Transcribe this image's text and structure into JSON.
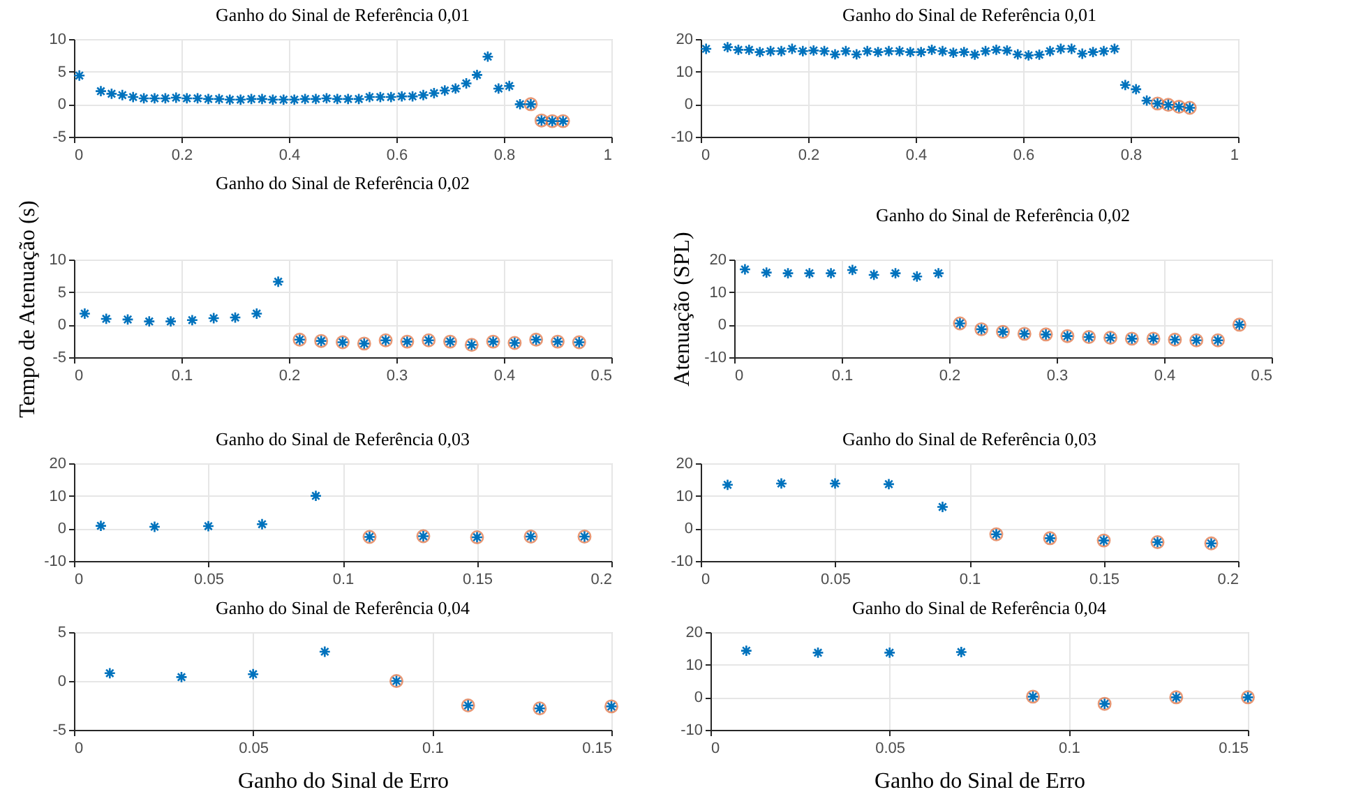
{
  "chart_data": [
    {
      "type": "scatter",
      "title": "Ganho do Sinal de Referência 0,01",
      "xlim": [
        0,
        1
      ],
      "xticks": [
        0,
        0.2,
        0.4,
        0.6,
        0.8,
        1
      ],
      "ylim": [
        -5,
        10
      ],
      "yticks": [
        -5,
        0,
        5,
        10
      ],
      "grid": true,
      "series": [
        {
          "color": "#0072bd",
          "marker": "cross",
          "x": [
            0.01,
            0.05,
            0.07,
            0.09,
            0.11,
            0.13,
            0.15,
            0.17,
            0.19,
            0.21,
            0.23,
            0.25,
            0.27,
            0.29,
            0.31,
            0.33,
            0.35,
            0.37,
            0.39,
            0.41,
            0.43,
            0.45,
            0.47,
            0.49,
            0.51,
            0.53,
            0.55,
            0.57,
            0.59,
            0.61,
            0.63,
            0.65,
            0.67,
            0.69,
            0.71,
            0.73,
            0.75,
            0.77,
            0.79,
            0.81,
            0.83,
            0.85,
            0.87,
            0.89,
            0.91
          ],
          "values": [
            4.4,
            2.0,
            1.6,
            1.4,
            1.1,
            0.9,
            0.9,
            0.9,
            1.0,
            0.9,
            0.9,
            0.8,
            0.8,
            0.7,
            0.7,
            0.8,
            0.8,
            0.7,
            0.7,
            0.7,
            0.8,
            0.8,
            0.9,
            0.8,
            0.8,
            0.8,
            1.1,
            1.1,
            1.1,
            1.2,
            1.2,
            1.4,
            1.7,
            2.1,
            2.4,
            3.2,
            4.5,
            7.3,
            2.4,
            2.8,
            0,
            0,
            -2.5,
            -2.6,
            -2.6
          ]
        },
        {
          "color": "#d95319",
          "marker": "circle",
          "x": [
            0.85,
            0.87,
            0.89,
            0.91
          ],
          "values": [
            0,
            -2.5,
            -2.6,
            -2.6
          ]
        }
      ]
    },
    {
      "type": "scatter",
      "title": "Ganho do Sinal de Referência 0,01",
      "xlim": [
        0,
        1
      ],
      "xticks": [
        0,
        0.2,
        0.4,
        0.6,
        0.8,
        1
      ],
      "ylim": [
        -10,
        20
      ],
      "yticks": [
        -10,
        0,
        10,
        20
      ],
      "grid": true,
      "series": [
        {
          "color": "#0072bd",
          "marker": "cross",
          "x": [
            0.01,
            0.05,
            0.07,
            0.09,
            0.11,
            0.13,
            0.15,
            0.17,
            0.19,
            0.21,
            0.23,
            0.25,
            0.27,
            0.29,
            0.31,
            0.33,
            0.35,
            0.37,
            0.39,
            0.41,
            0.43,
            0.45,
            0.47,
            0.49,
            0.51,
            0.53,
            0.55,
            0.57,
            0.59,
            0.61,
            0.63,
            0.65,
            0.67,
            0.69,
            0.71,
            0.73,
            0.75,
            0.77,
            0.79,
            0.81,
            0.83,
            0.85,
            0.87,
            0.89,
            0.91
          ],
          "values": [
            17,
            17.5,
            16.7,
            16.7,
            16,
            16.3,
            16.3,
            17,
            16.3,
            16.5,
            16.3,
            15.3,
            16.3,
            15.3,
            16.3,
            16,
            16.3,
            16.3,
            16,
            16,
            16.7,
            16.3,
            15.8,
            16,
            15.2,
            16.3,
            16.7,
            16.5,
            15.3,
            15,
            15.2,
            16.3,
            17,
            17,
            15.5,
            16,
            16.3,
            17,
            5.9,
            4.6,
            1.1,
            0.2,
            -0.2,
            -0.8,
            -1.1
          ]
        },
        {
          "color": "#d95319",
          "marker": "circle",
          "x": [
            0.85,
            0.87,
            0.89,
            0.91
          ],
          "values": [
            0.2,
            -0.2,
            -0.8,
            -1.1
          ]
        }
      ]
    },
    {
      "type": "scatter",
      "title": "Ganho do Sinal de Referência 0,02",
      "ylabel": "Tempo de Atenuação (s)",
      "xlim": [
        0,
        0.5
      ],
      "xticks": [
        0,
        0.1,
        0.2,
        0.3,
        0.4,
        0.5
      ],
      "ylim": [
        -5,
        10
      ],
      "yticks": [
        -5,
        0,
        5,
        10
      ],
      "grid": true,
      "series": [
        {
          "color": "#0072bd",
          "marker": "cross",
          "x": [
            0.01,
            0.03,
            0.05,
            0.07,
            0.09,
            0.11,
            0.13,
            0.15,
            0.17,
            0.19,
            0.21,
            0.23,
            0.25,
            0.27,
            0.29,
            0.31,
            0.33,
            0.35,
            0.37,
            0.39,
            0.41,
            0.43,
            0.45,
            0.47
          ],
          "values": [
            1.7,
            0.9,
            0.8,
            0.5,
            0.5,
            0.7,
            1.0,
            1.1,
            1.7,
            6.6,
            -2.3,
            -2.5,
            -2.7,
            -2.9,
            -2.4,
            -2.6,
            -2.4,
            -2.6,
            -3.1,
            -2.6,
            -2.8,
            -2.3,
            -2.6,
            -2.7
          ]
        },
        {
          "color": "#d95319",
          "marker": "circle",
          "x": [
            0.21,
            0.23,
            0.25,
            0.27,
            0.29,
            0.31,
            0.33,
            0.35,
            0.37,
            0.39,
            0.41,
            0.43,
            0.45,
            0.47
          ],
          "values": [
            -2.3,
            -2.5,
            -2.7,
            -2.9,
            -2.4,
            -2.6,
            -2.4,
            -2.6,
            -3.1,
            -2.6,
            -2.8,
            -2.3,
            -2.6,
            -2.7
          ]
        }
      ]
    },
    {
      "type": "scatter",
      "title": "Ganho do Sinal de Referência 0,02",
      "ylabel": "Atenuação (SPL)",
      "xlim": [
        0,
        0.5
      ],
      "xticks": [
        0,
        0.1,
        0.2,
        0.3,
        0.4,
        0.5
      ],
      "ylim": [
        -10,
        20
      ],
      "yticks": [
        -10,
        0,
        10,
        20
      ],
      "grid": true,
      "series": [
        {
          "color": "#0072bd",
          "marker": "cross",
          "x": [
            0.01,
            0.03,
            0.05,
            0.07,
            0.09,
            0.11,
            0.13,
            0.15,
            0.17,
            0.19,
            0.21,
            0.23,
            0.25,
            0.27,
            0.29,
            0.31,
            0.33,
            0.35,
            0.37,
            0.39,
            0.41,
            0.43,
            0.45,
            0.47
          ],
          "values": [
            17,
            16,
            15.8,
            15.8,
            15.8,
            16.8,
            15.3,
            15.8,
            14.8,
            15.8,
            0.4,
            -1.4,
            -2.2,
            -2.8,
            -3.0,
            -3.5,
            -3.8,
            -4,
            -4.3,
            -4.3,
            -4.6,
            -4.8,
            -4.8,
            0
          ]
        },
        {
          "color": "#d95319",
          "marker": "circle",
          "x": [
            0.21,
            0.23,
            0.25,
            0.27,
            0.29,
            0.31,
            0.33,
            0.35,
            0.37,
            0.39,
            0.41,
            0.43,
            0.45,
            0.47
          ],
          "values": [
            0.4,
            -1.4,
            -2.2,
            -2.8,
            -3.0,
            -3.5,
            -3.8,
            -4,
            -4.3,
            -4.3,
            -4.6,
            -4.8,
            -4.8,
            0
          ]
        }
      ]
    },
    {
      "type": "scatter",
      "title": "Ganho do Sinal de Referência 0,03",
      "xlim": [
        0,
        0.2
      ],
      "xticks": [
        0,
        0.05,
        0.1,
        0.15,
        0.2
      ],
      "ylim": [
        -10,
        20
      ],
      "yticks": [
        -10,
        0,
        10,
        20
      ],
      "grid": true,
      "series": [
        {
          "color": "#0072bd",
          "marker": "cross",
          "x": [
            0.01,
            0.03,
            0.05,
            0.07,
            0.09,
            0.11,
            0.13,
            0.15,
            0.17,
            0.19
          ],
          "values": [
            0.8,
            0.5,
            0.7,
            1.3,
            10.0,
            -2.6,
            -2.4,
            -2.7,
            -2.5,
            -2.5
          ]
        },
        {
          "color": "#d95319",
          "marker": "circle",
          "x": [
            0.11,
            0.13,
            0.15,
            0.17,
            0.19
          ],
          "values": [
            -2.6,
            -2.4,
            -2.7,
            -2.5,
            -2.5
          ]
        }
      ]
    },
    {
      "type": "scatter",
      "title": "Ganho do Sinal de Referência 0,03",
      "xlim": [
        0,
        0.2
      ],
      "xticks": [
        0,
        0.05,
        0.1,
        0.15,
        0.2
      ],
      "ylim": [
        -10,
        20
      ],
      "yticks": [
        -10,
        0,
        10,
        20
      ],
      "grid": true,
      "series": [
        {
          "color": "#0072bd",
          "marker": "cross",
          "x": [
            0.01,
            0.03,
            0.05,
            0.07,
            0.09,
            0.11,
            0.13,
            0.15,
            0.17,
            0.19
          ],
          "values": [
            13.4,
            13.8,
            13.8,
            13.6,
            6.6,
            -1.8,
            -3,
            -3.7,
            -4.2,
            -4.6
          ]
        },
        {
          "color": "#d95319",
          "marker": "circle",
          "x": [
            0.11,
            0.13,
            0.15,
            0.17,
            0.19
          ],
          "values": [
            -1.8,
            -3,
            -3.7,
            -4.2,
            -4.6
          ]
        }
      ]
    },
    {
      "type": "scatter",
      "title": "Ganho do Sinal de Referência 0,04",
      "xlabel": "Ganho do Sinal de Erro",
      "xlim": [
        0,
        0.15
      ],
      "xticks": [
        0,
        0.05,
        0.1,
        0.15
      ],
      "ylim": [
        -5,
        5
      ],
      "yticks": [
        -5,
        0,
        5
      ],
      "grid": true,
      "series": [
        {
          "color": "#0072bd",
          "marker": "cross",
          "x": [
            0.01,
            0.03,
            0.05,
            0.07,
            0.09,
            0.11,
            0.13,
            0.15
          ],
          "values": [
            0.8,
            0.4,
            0.7,
            3.0,
            0,
            -2.5,
            -2.8,
            -2.6
          ]
        },
        {
          "color": "#d95319",
          "marker": "circle",
          "x": [
            0.09,
            0.11,
            0.13,
            0.15
          ],
          "values": [
            0,
            -2.5,
            -2.8,
            -2.6
          ]
        }
      ]
    },
    {
      "type": "scatter",
      "title": "Ganho do Sinal de Referência 0,04",
      "xlabel": "Ganho do Sinal de Erro",
      "xlim": [
        0,
        0.15
      ],
      "xticks": [
        0,
        0.05,
        0.1,
        0.15
      ],
      "ylim": [
        -10,
        20
      ],
      "yticks": [
        -10,
        0,
        10,
        20
      ],
      "grid": true,
      "series": [
        {
          "color": "#0072bd",
          "marker": "cross",
          "x": [
            0.01,
            0.03,
            0.05,
            0.07,
            0.09,
            0.11,
            0.13,
            0.15
          ],
          "values": [
            14.3,
            13.7,
            13.7,
            13.9,
            0.2,
            -2,
            0,
            0
          ]
        },
        {
          "color": "#d95319",
          "marker": "circle",
          "x": [
            0.09,
            0.11,
            0.13,
            0.15
          ],
          "values": [
            0.2,
            -2,
            0,
            0
          ]
        }
      ]
    }
  ]
}
